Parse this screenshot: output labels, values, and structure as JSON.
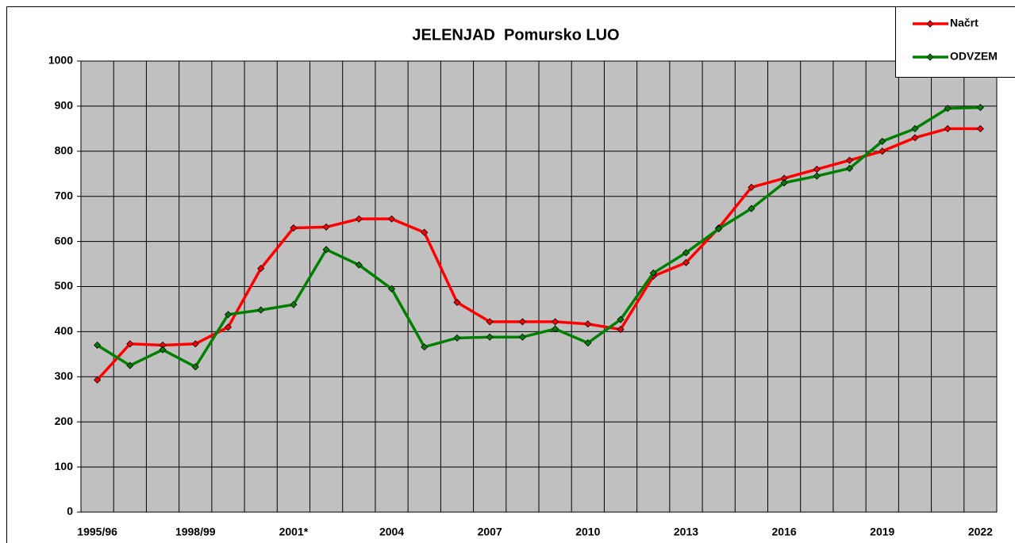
{
  "chart_data": {
    "type": "line",
    "title": "JELENJAD  Pomursko LUO",
    "categories": [
      "1995/96",
      null,
      null,
      "1998/99",
      null,
      null,
      "2001*",
      null,
      null,
      "2004",
      null,
      null,
      "2007",
      null,
      null,
      "2010",
      null,
      null,
      "2013",
      null,
      null,
      "2016",
      null,
      null,
      "2019",
      null,
      null,
      "2022"
    ],
    "series": [
      {
        "name": "Načrt",
        "color": "#ff0000",
        "values": [
          293,
          373,
          370,
          373,
          410,
          540,
          630,
          632,
          650,
          650,
          620,
          465,
          422,
          422,
          422,
          417,
          405,
          523,
          553,
          630,
          720,
          740,
          760,
          780,
          800,
          830,
          850,
          850
        ]
      },
      {
        "name": "ODVZEM",
        "color": "#008000",
        "values": [
          370,
          325,
          360,
          322,
          438,
          448,
          460,
          582,
          548,
          495,
          366,
          386,
          388,
          388,
          406,
          375,
          427,
          530,
          575,
          628,
          673,
          730,
          745,
          762,
          822,
          850,
          895,
          897
        ]
      }
    ],
    "ylim": [
      0,
      1000
    ],
    "yticks": [
      0,
      100,
      200,
      300,
      400,
      500,
      600,
      700,
      800,
      900,
      1000
    ],
    "grid": true,
    "legend": "upper right",
    "plot_background": "#c0c0c0"
  }
}
